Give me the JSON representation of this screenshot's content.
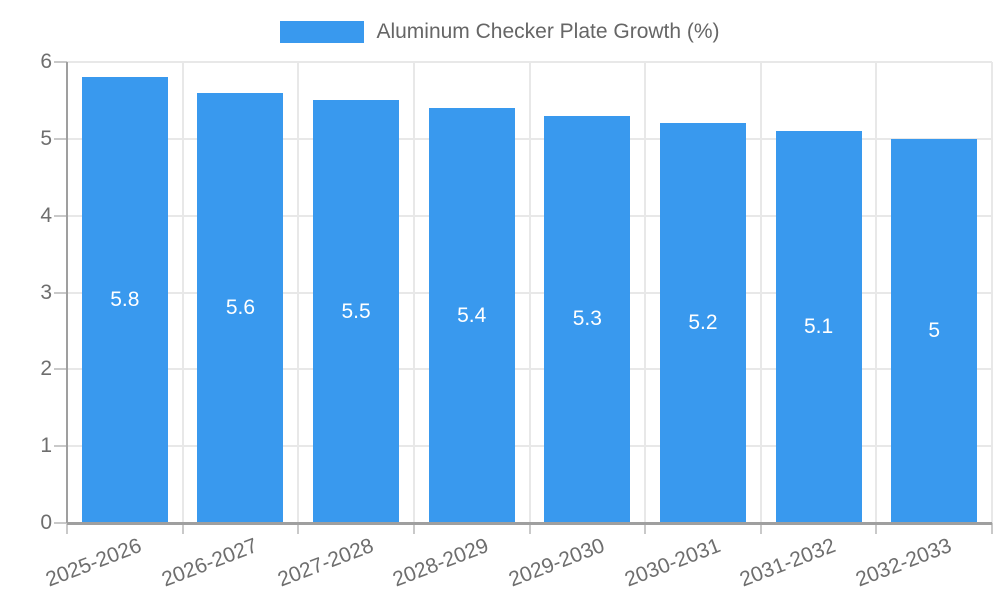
{
  "chart_data": {
    "type": "bar",
    "title": "Aluminum Checker Plate Growth (%)",
    "legend": {
      "position": "top",
      "entries": [
        {
          "label": "Aluminum Checker Plate Growth (%)",
          "color": "#3999ee"
        }
      ]
    },
    "categories": [
      "2025-2026",
      "2026-2027",
      "2027-2028",
      "2028-2029",
      "2029-2030",
      "2030-2031",
      "2031-2032",
      "2032-2033"
    ],
    "values": [
      5.8,
      5.6,
      5.5,
      5.4,
      5.3,
      5.2,
      5.1,
      5
    ],
    "value_labels": [
      "5.8",
      "5.6",
      "5.5",
      "5.4",
      "5.3",
      "5.2",
      "5.1",
      "5"
    ],
    "xlabel": "",
    "ylabel": "",
    "ylim": [
      0,
      6
    ],
    "yticks": [
      0,
      1,
      2,
      3,
      4,
      5,
      6
    ],
    "grid": true,
    "x_tick_rotation_deg": -21,
    "colors": {
      "bar": "#3999ee",
      "value_label": "#ffffff",
      "grid": "#e8e8e8",
      "axis": "#9f9f9f",
      "tick": "#c9c9c9",
      "tick_text": "#6e6e6e",
      "legend_text": "#666666",
      "background": "#ffffff"
    }
  }
}
